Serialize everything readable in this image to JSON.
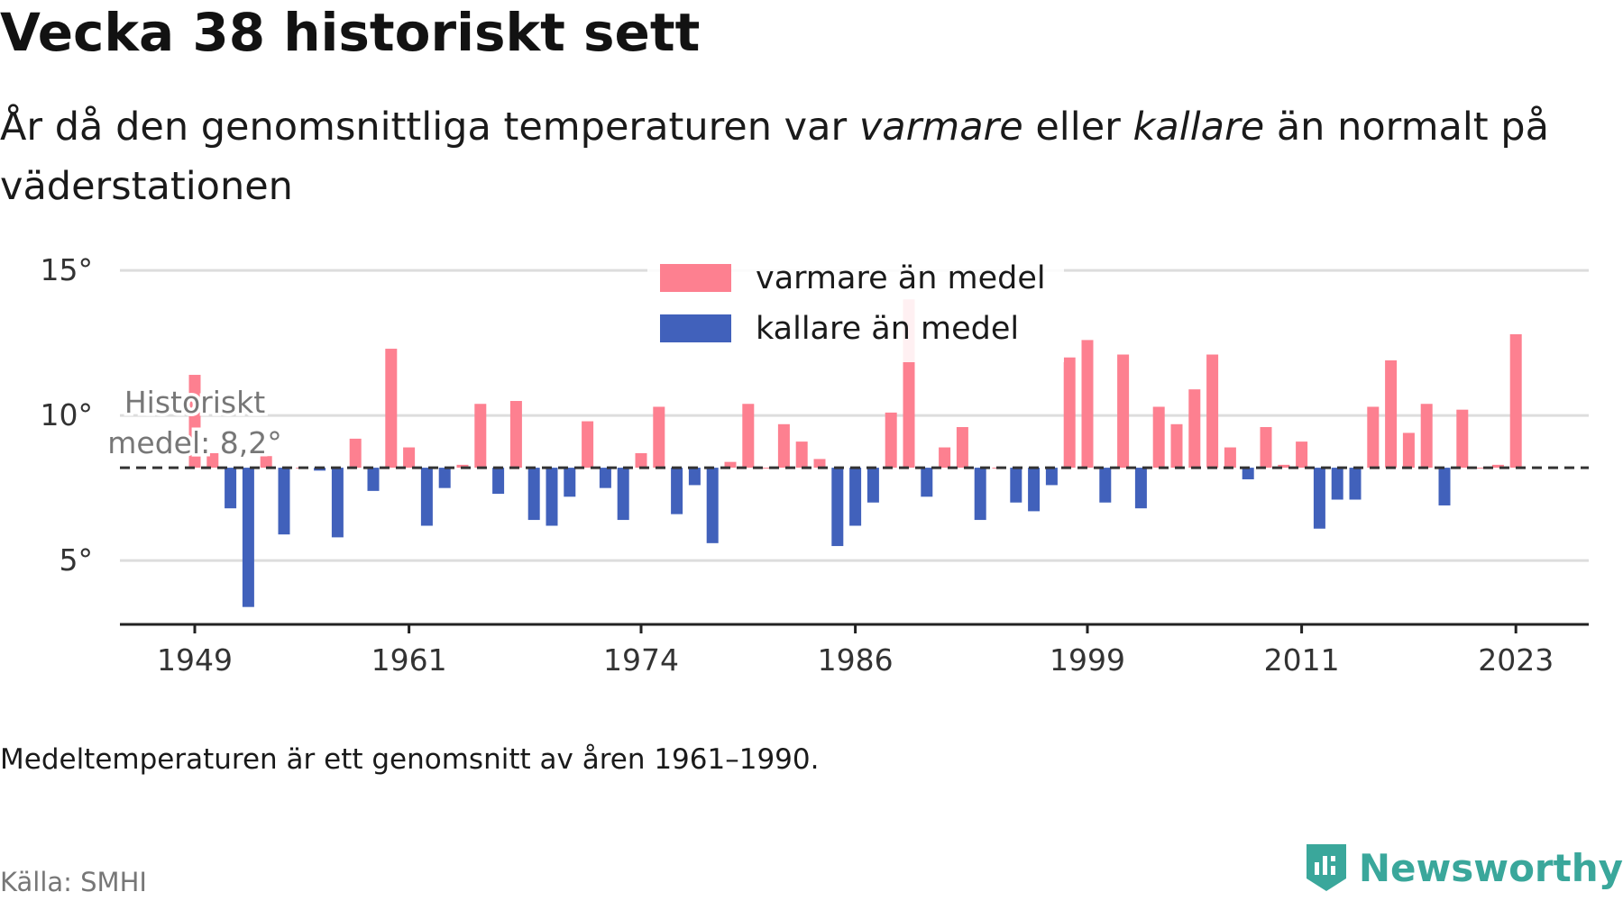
{
  "header": {
    "title": "Vecka 38 historiskt sett",
    "subtitle_part1": "År då den genomsnittliga temperaturen var ",
    "subtitle_em1": "varmare",
    "subtitle_part2": " eller ",
    "subtitle_em2": "kallare",
    "subtitle_part3": " än normalt på väderstationen"
  },
  "footer": {
    "note": "Medeltemperaturen är ett genomsnitt av åren 1961–1990.",
    "source": "Källa: SMHI",
    "brand": "Newsworthy"
  },
  "chart_data": {
    "type": "bar",
    "baseline": 8.2,
    "baseline_label": "Historiskt medel: 8,2°",
    "ylim": [
      2.8,
      15.5
    ],
    "yticks": [
      5,
      10,
      15
    ],
    "ytick_labels": [
      "5°",
      "10°",
      "15°"
    ],
    "xticks": [
      1949,
      1961,
      1974,
      1986,
      1999,
      2011,
      2023
    ],
    "grid": true,
    "legend_position": "top-center",
    "series": [
      {
        "name": "varmare än medel",
        "color": "#fd8090"
      },
      {
        "name": "kallare än medel",
        "color": "#4161bb"
      }
    ],
    "categories": [
      1949,
      1950,
      1951,
      1952,
      1953,
      1954,
      1955,
      1956,
      1957,
      1958,
      1959,
      1960,
      1961,
      1962,
      1963,
      1964,
      1965,
      1966,
      1967,
      1968,
      1969,
      1970,
      1971,
      1972,
      1973,
      1974,
      1975,
      1976,
      1977,
      1978,
      1979,
      1980,
      1981,
      1982,
      1983,
      1984,
      1985,
      1986,
      1987,
      1988,
      1989,
      1990,
      1991,
      1992,
      1993,
      1994,
      1995,
      1996,
      1997,
      1998,
      1999,
      2000,
      2001,
      2002,
      2003,
      2004,
      2005,
      2006,
      2007,
      2008,
      2009,
      2010,
      2011,
      2012,
      2013,
      2014,
      2015,
      2016,
      2017,
      2018,
      2019,
      2020,
      2021,
      2022,
      2023
    ],
    "values": [
      11.4,
      8.7,
      6.8,
      3.4,
      8.6,
      5.9,
      8.2,
      8.1,
      5.8,
      9.2,
      7.4,
      12.3,
      8.9,
      6.2,
      7.5,
      8.3,
      10.4,
      7.3,
      10.5,
      6.4,
      6.2,
      7.2,
      9.8,
      7.5,
      6.4,
      8.7,
      10.3,
      6.6,
      7.6,
      5.6,
      8.4,
      10.4,
      8.2,
      9.7,
      9.1,
      8.5,
      5.5,
      6.2,
      7.0,
      10.1,
      14.0,
      7.2,
      8.9,
      9.6,
      6.4,
      8.2,
      7.0,
      6.7,
      7.6,
      12.0,
      12.6,
      7.0,
      12.1,
      6.8,
      10.3,
      9.7,
      10.9,
      12.1,
      8.9,
      7.8,
      9.6,
      8.3,
      9.1,
      6.1,
      7.1,
      7.1,
      10.3,
      11.9,
      9.4,
      10.4,
      6.9,
      10.2,
      8.2,
      8.3,
      12.8
    ]
  }
}
